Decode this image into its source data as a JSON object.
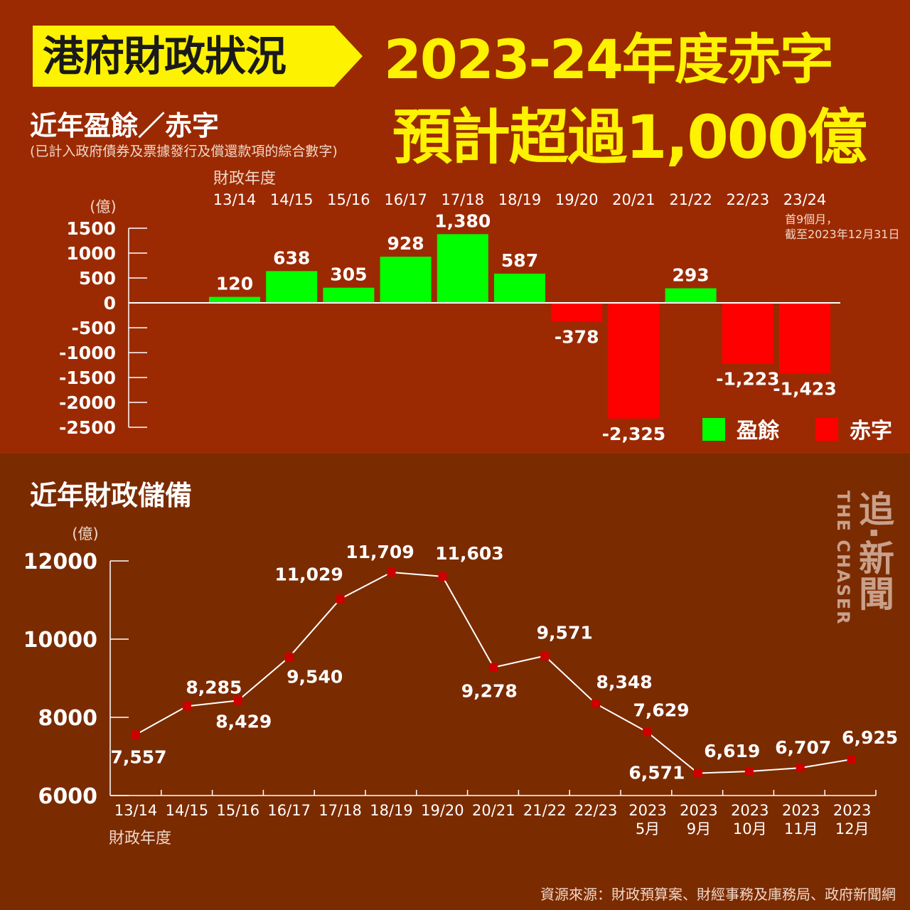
{
  "header": {
    "tag": "港府財政狀況",
    "headline_line1": "2023-24年度赤字",
    "headline_line2": "預計超過1,000億"
  },
  "colors": {
    "top_bg": "#9b2a02",
    "bottom_bg": "#7b2b00",
    "surplus": "#00ff00",
    "deficit": "#ff0000",
    "headline": "#fdf200",
    "line": "#ffffff",
    "marker": "#cc0000"
  },
  "surplus_section": {
    "title": "近年盈餘／赤字",
    "subtitle": "(已計入政府債券及票據發行及償還款項的綜合數字)",
    "note": [
      "首9個月，",
      "截至2023年12月31日"
    ]
  },
  "reserves_section": {
    "title": "近年財政儲備"
  },
  "logo": {
    "en": "THE CHASER",
    "zh": "追·新聞"
  },
  "source": "資源來源：財政預算案、財經事務及庫務局、政府新聞網",
  "chart_data": [
    {
      "type": "bar",
      "xlabel": "財政年度",
      "ylabel": "(億)",
      "categories": [
        "13/14",
        "14/15",
        "15/16",
        "16/17",
        "17/18",
        "18/19",
        "19/20",
        "20/21",
        "21/22",
        "22/23",
        "23/24"
      ],
      "values": [
        120,
        638,
        305,
        928,
        1380,
        587,
        -378,
        -2325,
        293,
        -1223,
        -1423
      ],
      "data_labels": [
        "120",
        "638",
        "305",
        "928",
        "1,380",
        "587",
        "-378",
        "-2,325",
        "293",
        "-1,223",
        "-1,423"
      ],
      "yticks": [
        "1500",
        "1000",
        "500",
        "0",
        "-500",
        "-1000",
        "-1500",
        "-2000",
        "-2500"
      ],
      "ylim": [
        -2500,
        1500
      ],
      "legend": [
        {
          "name": "盈餘",
          "color": "#00ff00"
        },
        {
          "name": "赤字",
          "color": "#ff0000"
        }
      ],
      "legend_position": "bottom-right"
    },
    {
      "type": "line",
      "xlabel": "財政年度",
      "ylabel": "(億)",
      "categories": [
        "13/14",
        "14/15",
        "15/16",
        "16/17",
        "17/18",
        "18/19",
        "19/20",
        "20/21",
        "21/22",
        "22/23",
        "2023 5月",
        "2023 9月",
        "2023 10月",
        "2023 11月",
        "2023 12月"
      ],
      "values": [
        7557,
        8285,
        8429,
        9540,
        11029,
        11709,
        11603,
        9278,
        9571,
        8348,
        7629,
        6571,
        6619,
        6707,
        6925
      ],
      "data_labels": [
        "7,557",
        "8,285",
        "8,429",
        "9,540",
        "11,029",
        "11,709",
        "11,603",
        "9,278",
        "9,571",
        "8,348",
        "7,629",
        "6,571",
        "6,619",
        "6,707",
        "6,925"
      ],
      "yticks": [
        "12000",
        "10000",
        "8000",
        "6000"
      ],
      "ylim": [
        6000,
        12000
      ]
    }
  ]
}
